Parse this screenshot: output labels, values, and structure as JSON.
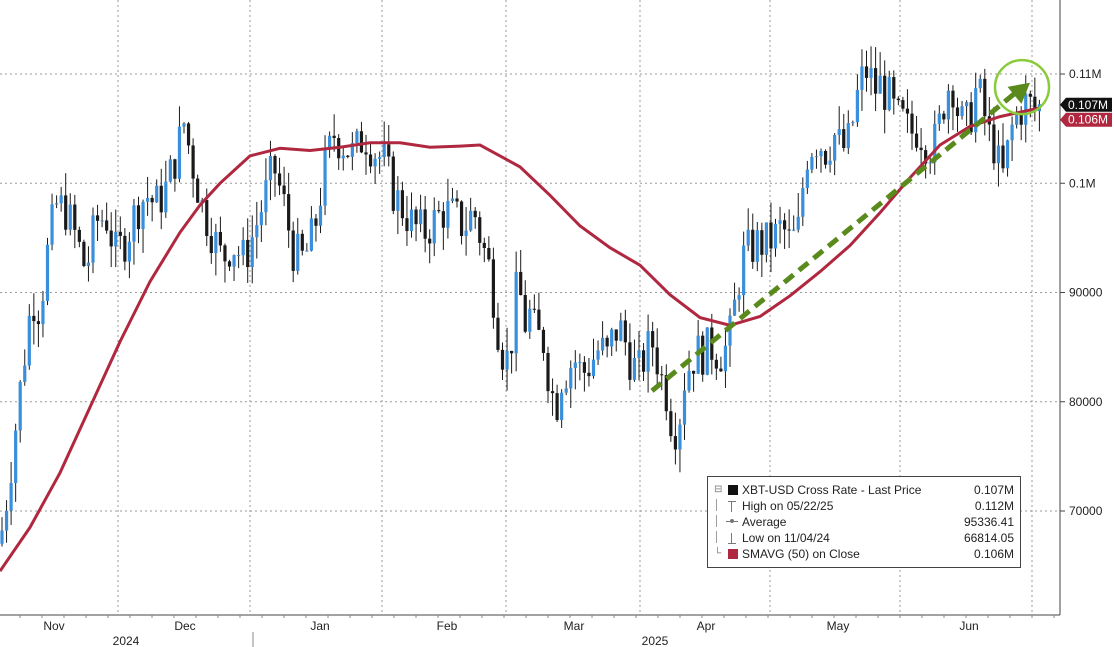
{
  "chart_data": {
    "type": "candlestick",
    "y_axis": {
      "range": [
        60000,
        113500
      ],
      "ticks": [
        {
          "value": 70000,
          "label": "70000"
        },
        {
          "value": 80000,
          "label": "80000"
        },
        {
          "value": 90000,
          "label": "90000"
        },
        {
          "value": 100000,
          "label": "0.1M"
        },
        {
          "value": 110000,
          "label": "0.11M"
        }
      ],
      "grid": true,
      "position": "right"
    },
    "x_axis": {
      "month_labels": [
        "Nov",
        "Dec",
        "Jan",
        "Feb",
        "Mar",
        "Apr",
        "May",
        "Jun"
      ],
      "year_labels": [
        "2024",
        "2025"
      ],
      "grid": true
    },
    "tags": [
      {
        "value": 107000,
        "label": "0.107M",
        "color": "#111111"
      },
      {
        "value": 106000,
        "label": "0.106M",
        "color": "#b0283f"
      }
    ],
    "price_trend": [
      [
        0,
        67000
      ],
      [
        8,
        72000
      ],
      [
        14,
        76500
      ],
      [
        22,
        82500
      ],
      [
        32,
        89500
      ],
      [
        40,
        88500
      ],
      [
        48,
        94000
      ],
      [
        56,
        98000
      ],
      [
        66,
        97500
      ],
      [
        76,
        95000
      ],
      [
        86,
        92000
      ],
      [
        96,
        96500
      ],
      [
        106,
        97000
      ],
      [
        116,
        93500
      ],
      [
        126,
        95000
      ],
      [
        136,
        97500
      ],
      [
        146,
        99000
      ],
      [
        156,
        98000
      ],
      [
        166,
        99500
      ],
      [
        176,
        102500
      ],
      [
        184,
        105500
      ],
      [
        192,
        102000
      ],
      [
        202,
        98000
      ],
      [
        212,
        95500
      ],
      [
        222,
        93000
      ],
      [
        232,
        94500
      ],
      [
        244,
        93000
      ],
      [
        254,
        95500
      ],
      [
        264,
        98500
      ],
      [
        274,
        101500
      ],
      [
        284,
        98000
      ],
      [
        294,
        93500
      ],
      [
        304,
        93000
      ],
      [
        314,
        95500
      ],
      [
        324,
        101000
      ],
      [
        334,
        104500
      ],
      [
        344,
        103500
      ],
      [
        354,
        102500
      ],
      [
        364,
        104500
      ],
      [
        374,
        103000
      ],
      [
        384,
        102000
      ],
      [
        394,
        99000
      ],
      [
        404,
        97500
      ],
      [
        414,
        96000
      ],
      [
        424,
        95500
      ],
      [
        434,
        96500
      ],
      [
        444,
        97500
      ],
      [
        454,
        97000
      ],
      [
        464,
        96000
      ],
      [
        474,
        97500
      ],
      [
        482,
        94500
      ],
      [
        490,
        92000
      ],
      [
        500,
        85500
      ],
      [
        506,
        83500
      ],
      [
        512,
        86000
      ],
      [
        518,
        91500
      ],
      [
        524,
        87000
      ],
      [
        530,
        88000
      ],
      [
        536,
        86000
      ],
      [
        544,
        85500
      ],
      [
        550,
        81500
      ],
      [
        556,
        79500
      ],
      [
        562,
        82500
      ],
      [
        568,
        83000
      ],
      [
        574,
        84000
      ],
      [
        582,
        82500
      ],
      [
        590,
        83500
      ],
      [
        600,
        85000
      ],
      [
        608,
        84000
      ],
      [
        614,
        86500
      ],
      [
        622,
        86500
      ],
      [
        630,
        84000
      ],
      [
        638,
        82500
      ],
      [
        646,
        84500
      ],
      [
        654,
        85500
      ],
      [
        660,
        82500
      ],
      [
        666,
        81000
      ],
      [
        672,
        78000
      ],
      [
        678,
        77500
      ],
      [
        684,
        82000
      ],
      [
        690,
        83500
      ],
      [
        696,
        84500
      ],
      [
        704,
        84500
      ],
      [
        712,
        85000
      ],
      [
        718,
        84500
      ],
      [
        724,
        84500
      ],
      [
        730,
        86000
      ],
      [
        736,
        89500
      ],
      [
        742,
        93000
      ],
      [
        750,
        94000
      ],
      [
        758,
        94500
      ],
      [
        766,
        94500
      ],
      [
        774,
        95000
      ],
      [
        782,
        96000
      ],
      [
        790,
        94500
      ],
      [
        798,
        95500
      ],
      [
        806,
        102500
      ],
      [
        812,
        103500
      ],
      [
        818,
        104000
      ],
      [
        826,
        103000
      ],
      [
        834,
        104500
      ],
      [
        842,
        103000
      ],
      [
        850,
        104000
      ],
      [
        856,
        107500
      ],
      [
        862,
        109500
      ],
      [
        868,
        110500
      ],
      [
        874,
        108500
      ],
      [
        880,
        109000
      ],
      [
        888,
        108000
      ],
      [
        896,
        106000
      ],
      [
        904,
        105500
      ],
      [
        910,
        104500
      ],
      [
        916,
        105000
      ],
      [
        922,
        104500
      ],
      [
        928,
        103500
      ],
      [
        934,
        103500
      ],
      [
        940,
        105500
      ],
      [
        946,
        108500
      ],
      [
        952,
        109500
      ],
      [
        958,
        106500
      ],
      [
        964,
        105000
      ],
      [
        970,
        106000
      ],
      [
        976,
        108500
      ],
      [
        982,
        107500
      ],
      [
        988,
        104500
      ],
      [
        994,
        103500
      ],
      [
        1000,
        101000
      ],
      [
        1004,
        100500
      ],
      [
        1010,
        104500
      ],
      [
        1016,
        106000
      ],
      [
        1022,
        107000
      ],
      [
        1028,
        107500
      ],
      [
        1034,
        106500
      ],
      [
        1040,
        107000
      ]
    ],
    "sma_series": [
      [
        0,
        64500
      ],
      [
        30,
        68500
      ],
      [
        60,
        73500
      ],
      [
        90,
        79500
      ],
      [
        120,
        85500
      ],
      [
        150,
        91000
      ],
      [
        180,
        95500
      ],
      [
        200,
        98000
      ],
      [
        220,
        100000
      ],
      [
        250,
        102500
      ],
      [
        280,
        103200
      ],
      [
        310,
        103000
      ],
      [
        340,
        103300
      ],
      [
        370,
        103700
      ],
      [
        400,
        103700
      ],
      [
        430,
        103300
      ],
      [
        460,
        103400
      ],
      [
        480,
        103500
      ],
      [
        500,
        102500
      ],
      [
        520,
        101500
      ],
      [
        550,
        98900
      ],
      [
        580,
        96100
      ],
      [
        610,
        94100
      ],
      [
        640,
        92500
      ],
      [
        670,
        89800
      ],
      [
        700,
        87700
      ],
      [
        730,
        87000
      ],
      [
        760,
        87800
      ],
      [
        790,
        89700
      ],
      [
        820,
        91900
      ],
      [
        850,
        94300
      ],
      [
        880,
        97300
      ],
      [
        910,
        100500
      ],
      [
        940,
        103500
      ],
      [
        970,
        105200
      ],
      [
        1000,
        106100
      ],
      [
        1020,
        106500
      ],
      [
        1040,
        106900
      ]
    ],
    "trend_arrow": {
      "from": [
        652,
        81000
      ],
      "to": [
        1030,
        109200
      ],
      "color": "#5a8a1c"
    },
    "highlight_circle": {
      "center": [
        1022,
        108800
      ],
      "color": "#8acb3c"
    },
    "legend": {
      "position": "bottom-right",
      "rows": [
        {
          "label": "XBT-USD Cross Rate - Last Price",
          "value": "0.107M",
          "marker": "square",
          "color": "#111111"
        },
        {
          "label": "High on 05/22/25",
          "value": "0.112M",
          "marker": "high"
        },
        {
          "label": "Average",
          "value": "95336.41",
          "marker": "average"
        },
        {
          "label": "Low on 11/04/24",
          "value": "66814.05",
          "marker": "low"
        },
        {
          "label": "SMAVG (50)  on Close",
          "value": "0.106M",
          "marker": "square",
          "color": "#b0283f"
        }
      ]
    },
    "colors": {
      "up": "#3a8fdc",
      "down": "#1a1a1a",
      "sma": "#b0283f",
      "grid": "#9a9a9a"
    }
  }
}
